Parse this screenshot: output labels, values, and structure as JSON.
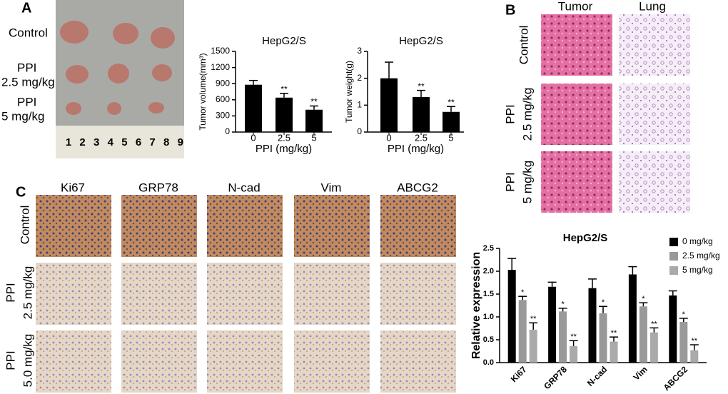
{
  "panel_a": {
    "label": "A",
    "row_labels": [
      [
        "Control"
      ],
      [
        "PPI",
        "2.5 mg/kg"
      ],
      [
        "PPI",
        "5 mg/kg"
      ]
    ],
    "ruler_numbers": [
      1,
      2,
      3,
      4,
      5,
      6,
      7,
      8,
      9
    ]
  },
  "panel_b": {
    "label": "B",
    "columns": [
      "Tumor",
      "Lung"
    ],
    "row_labels": [
      [
        "Control"
      ],
      [
        "PPI",
        "2.5 mg/kg"
      ],
      [
        "PPI",
        "5 mg/kg"
      ]
    ]
  },
  "panel_c": {
    "label": "C",
    "columns": [
      "Ki67",
      "GRP78",
      "N-cad",
      "Vim",
      "ABCG2"
    ],
    "row_labels": [
      [
        "Control"
      ],
      [
        "PPI",
        "2.5 mg/kg"
      ],
      [
        "PPI",
        "5.0 mg/kg"
      ]
    ]
  },
  "chart_data": [
    {
      "type": "bar",
      "title": "HepG2/S",
      "x_label": "PPI (mg/kg)",
      "y_label": "Tumor volume(mm³)",
      "categories": [
        "0",
        "2.5",
        "5"
      ],
      "values": [
        880,
        640,
        415
      ],
      "errors": [
        80,
        80,
        70
      ],
      "annotations": [
        null,
        "**",
        "**"
      ],
      "color": "#000000",
      "ylim": [
        0,
        1500
      ],
      "yticks": [
        0,
        300,
        600,
        900,
        1200,
        1500
      ]
    },
    {
      "type": "bar",
      "title": "HepG2/S",
      "x_label": "PPI (mg/kg)",
      "y_label": "Tumor weight(g)",
      "categories": [
        "0",
        "2.5",
        "5"
      ],
      "values": [
        2.0,
        1.3,
        0.75
      ],
      "errors": [
        0.6,
        0.25,
        0.2
      ],
      "annotations": [
        null,
        "**",
        "**"
      ],
      "color": "#000000",
      "ylim": [
        0,
        3
      ],
      "yticks": [
        0,
        1,
        2,
        3
      ]
    },
    {
      "type": "grouped_bar",
      "title": "HepG2/S",
      "y_label": "Relative expression",
      "categories": [
        "Ki67",
        "GRP78",
        "N-cad",
        "Vim",
        "ABCG2"
      ],
      "series": [
        {
          "name": "0 mg/kg",
          "color": "#000000",
          "values": [
            2.03,
            1.66,
            1.63,
            1.93,
            1.47
          ],
          "errors": [
            0.25,
            0.1,
            0.2,
            0.17,
            0.1
          ],
          "annotations": [
            null,
            null,
            null,
            null,
            null
          ]
        },
        {
          "name": "2.5 mg/kg",
          "color": "#999999",
          "values": [
            1.37,
            1.12,
            1.08,
            1.23,
            0.89
          ],
          "errors": [
            0.08,
            0.07,
            0.15,
            0.08,
            0.08
          ],
          "annotations": [
            "*",
            "*",
            "*",
            "*",
            "*"
          ]
        },
        {
          "name": "5 mg/kg",
          "color": "#aaaaaa",
          "values": [
            0.72,
            0.36,
            0.46,
            0.66,
            0.27
          ],
          "errors": [
            0.15,
            0.12,
            0.1,
            0.1,
            0.12
          ],
          "annotations": [
            "**",
            "**",
            "**",
            "**",
            "**"
          ]
        }
      ],
      "ylim": [
        0,
        2.5
      ],
      "yticks": [
        {
          "value": 0,
          "label": "0.0"
        },
        0.5,
        {
          "value": 1,
          "label": "1.0"
        },
        1.5,
        {
          "value": 2,
          "label": "2.0"
        },
        2.5
      ],
      "legend": "upper right"
    }
  ]
}
